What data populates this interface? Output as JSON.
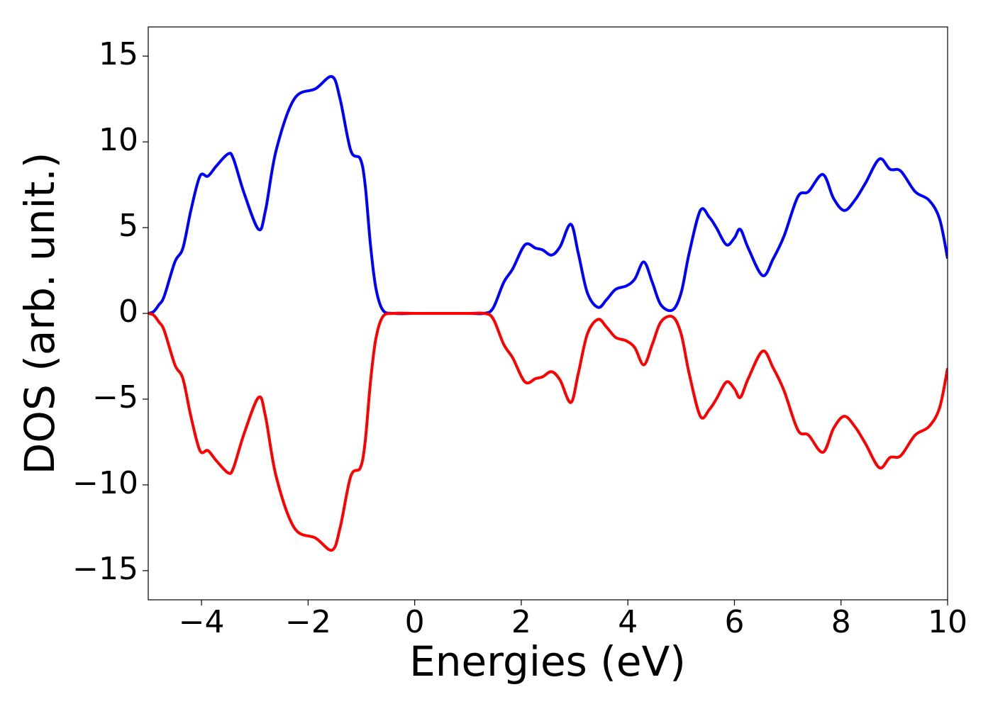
{
  "chart_data": {
    "type": "line",
    "x_label": "Energies (eV)",
    "y_label": "DOS (arb. unit.)",
    "x": [
      -5,
      -4.9,
      -4.8,
      -4.7,
      -4.5,
      -4.35,
      -4.2,
      -4.03,
      -3.88,
      -3.72,
      -3.5,
      -3.4,
      -3.2,
      -2.93,
      -2.8,
      -2.6,
      -2.26,
      -1.86,
      -1.55,
      -1.4,
      -1.2,
      -1.02,
      -0.93,
      -0.83,
      -0.73,
      -0.6,
      -0.4,
      0,
      0.5,
      1.0,
      1.3,
      1.47,
      1.67,
      1.84,
      2.07,
      2.27,
      2.4,
      2.57,
      2.73,
      2.93,
      3.07,
      3.24,
      3.44,
      3.6,
      3.77,
      3.97,
      4.13,
      4.3,
      4.46,
      4.62,
      4.84,
      5.0,
      5.15,
      5.36,
      5.53,
      5.66,
      5.85,
      6.0,
      6.11,
      6.26,
      6.53,
      6.73,
      6.93,
      7.19,
      7.39,
      7.66,
      7.86,
      8.06,
      8.26,
      8.46,
      8.72,
      8.92,
      9.12,
      9.39,
      9.65,
      9.85,
      10
    ],
    "series": [
      {
        "color": "#0000ff",
        "values": [
          0,
          0.1,
          0.5,
          1.0,
          3.0,
          3.8,
          6.0,
          8.0,
          8.0,
          8.6,
          9.3,
          9.0,
          7.0,
          4.9,
          6.0,
          9.5,
          12.5,
          13.1,
          13.8,
          12.5,
          9.5,
          9.0,
          7.5,
          4.0,
          1.5,
          0.2,
          0,
          0,
          0,
          0,
          0,
          0.3,
          1.8,
          2.6,
          4.0,
          3.8,
          3.7,
          3.4,
          3.9,
          5.2,
          3.5,
          1.2,
          0.35,
          0.8,
          1.4,
          1.6,
          2.0,
          3.0,
          1.8,
          0.5,
          0.2,
          1.2,
          3.5,
          6.0,
          5.6,
          5.0,
          4.0,
          4.4,
          4.9,
          3.8,
          2.2,
          3.2,
          4.5,
          6.8,
          7.1,
          8.1,
          6.7,
          6.0,
          6.6,
          7.6,
          9.0,
          8.4,
          8.3,
          7.1,
          6.6,
          5.5,
          3.2
        ]
      },
      {
        "color": "#ff0000",
        "values": [
          0,
          -0.1,
          -0.5,
          -1.0,
          -3.0,
          -3.8,
          -6.0,
          -8.0,
          -8.0,
          -8.6,
          -9.3,
          -9.0,
          -7.0,
          -4.9,
          -6.0,
          -9.5,
          -12.5,
          -13.1,
          -13.8,
          -12.5,
          -9.5,
          -9.0,
          -7.5,
          -4.0,
          -1.5,
          -0.2,
          0,
          0,
          0,
          0,
          0,
          -0.3,
          -1.8,
          -2.6,
          -4.0,
          -3.8,
          -3.7,
          -3.4,
          -3.9,
          -5.2,
          -3.5,
          -1.2,
          -0.35,
          -0.8,
          -1.4,
          -1.6,
          -2.0,
          -3.0,
          -1.8,
          -0.5,
          -0.2,
          -1.2,
          -3.5,
          -6.0,
          -5.6,
          -5.0,
          -4.0,
          -4.4,
          -4.9,
          -3.8,
          -2.2,
          -3.2,
          -4.5,
          -6.8,
          -7.1,
          -8.1,
          -6.7,
          -6.0,
          -6.6,
          -7.6,
          -9.0,
          -8.4,
          -8.3,
          -7.1,
          -6.6,
          -5.5,
          -3.2
        ]
      }
    ],
    "xlim": [
      -5,
      10
    ],
    "xticks": [
      {
        "value": -4,
        "label": "−4"
      },
      {
        "value": -2,
        "label": "−2"
      },
      0,
      2,
      4,
      6,
      8,
      10
    ],
    "ylim": [
      -16.7,
      16.7
    ],
    "yticks": [
      {
        "value": -15,
        "label": "−15"
      },
      {
        "value": -10,
        "label": "−10"
      },
      {
        "value": -5,
        "label": "−5"
      },
      0,
      5,
      10,
      15
    ],
    "grid": false
  }
}
